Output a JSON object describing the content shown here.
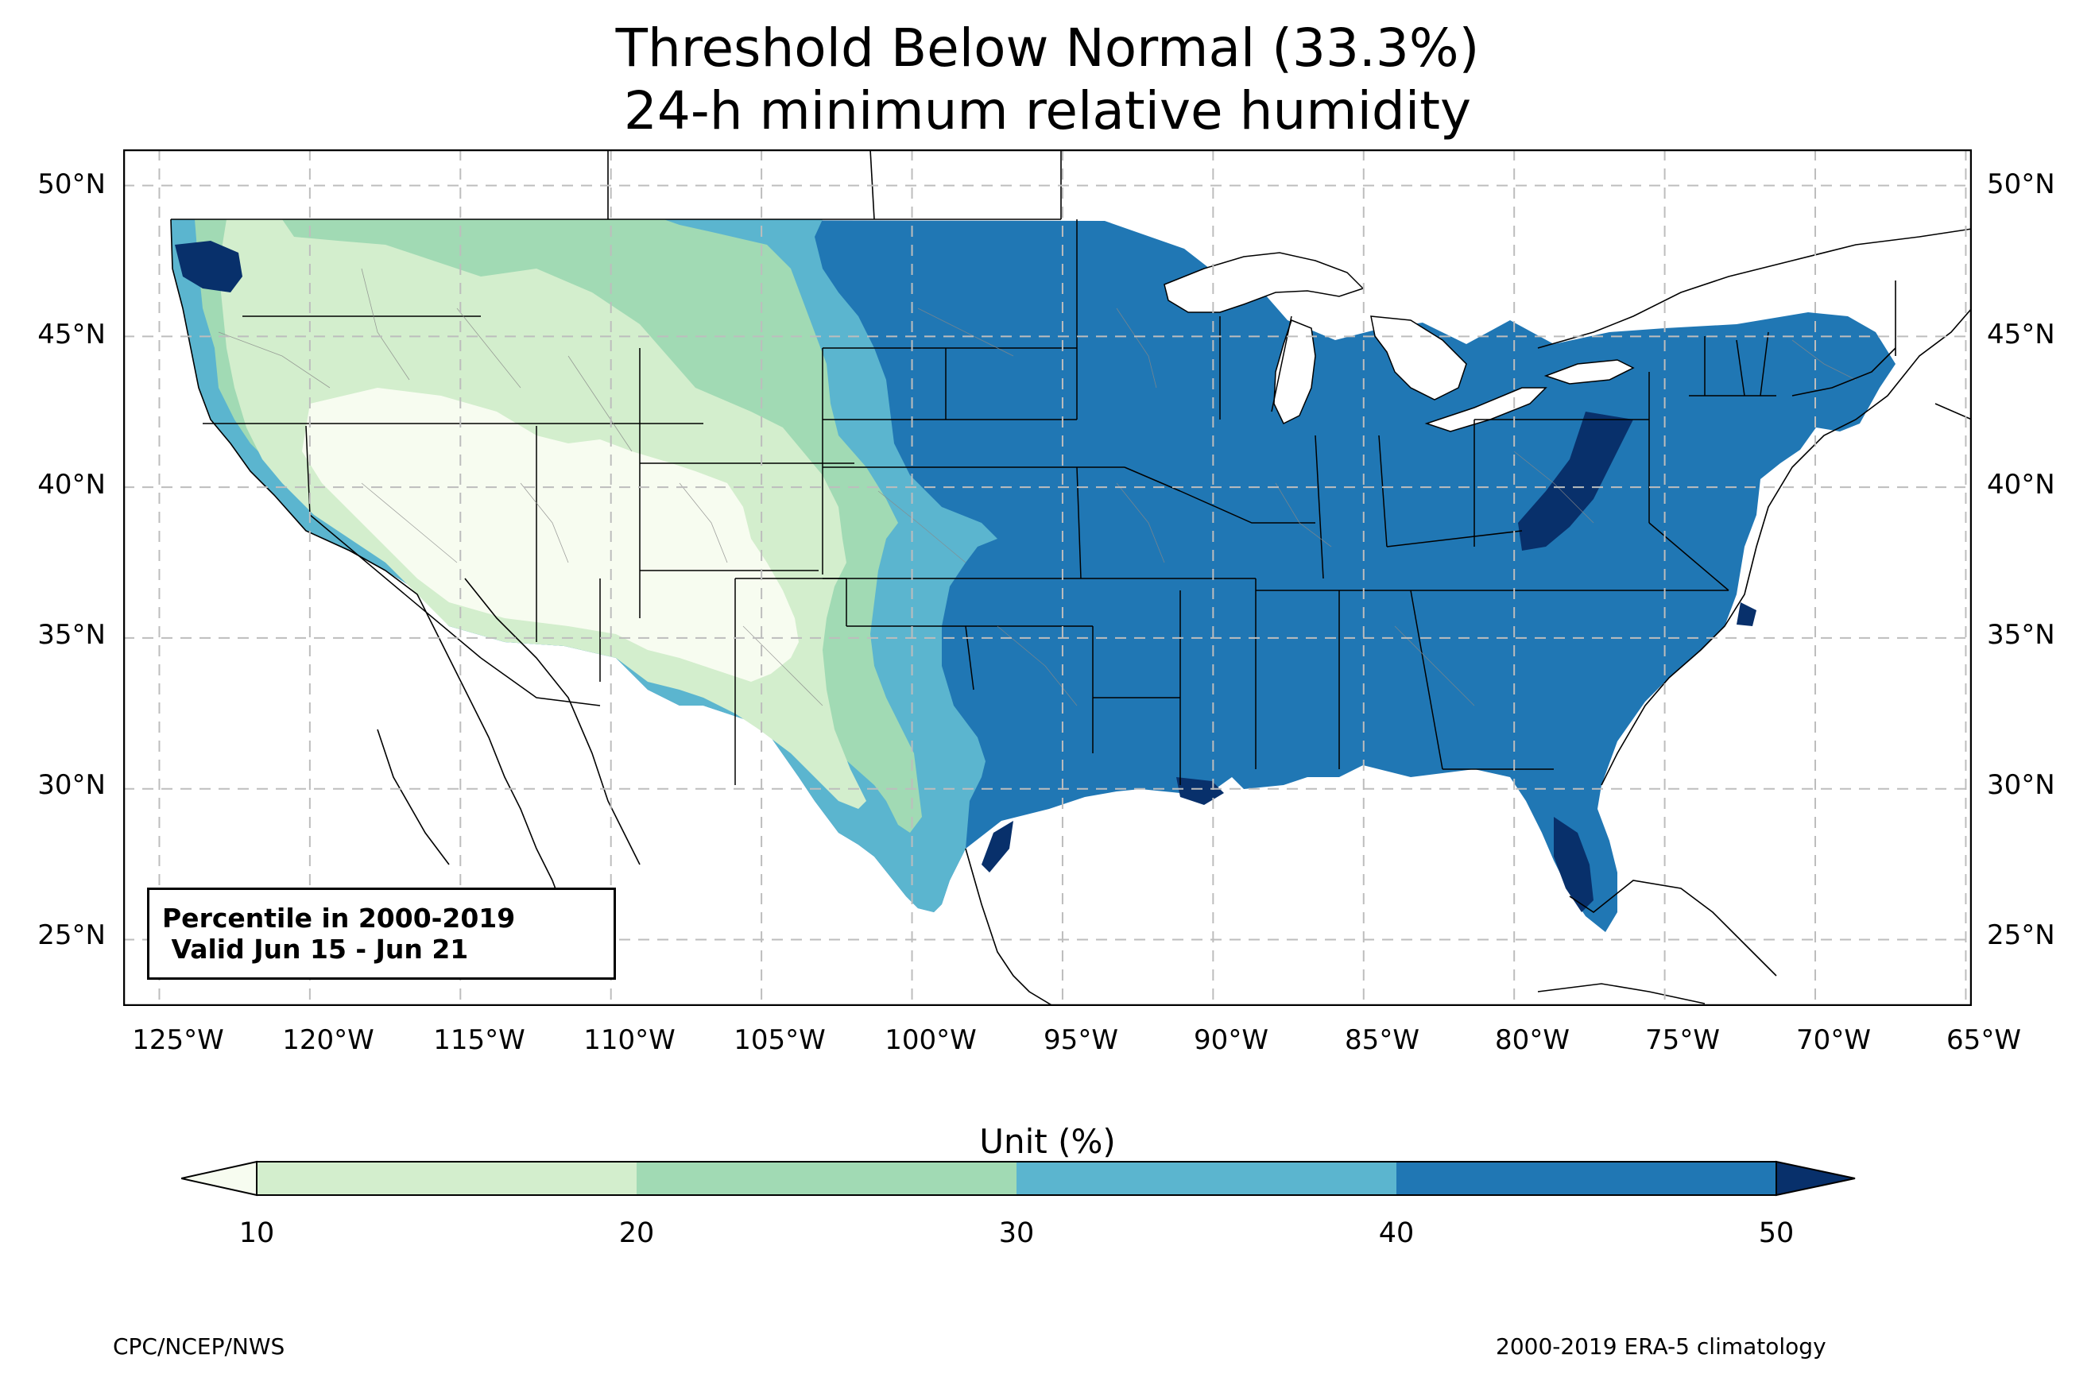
{
  "title": {
    "line1": "Threshold Below Normal (33.3%)",
    "line2": "24-h minimum relative humidity"
  },
  "axes": {
    "lat_labels": [
      "50°N",
      "45°N",
      "40°N",
      "35°N",
      "30°N",
      "25°N"
    ],
    "lon_labels": [
      "125°W",
      "120°W",
      "115°W",
      "110°W",
      "105°W",
      "100°W",
      "95°W",
      "90°W",
      "85°W",
      "80°W",
      "75°W",
      "70°W",
      "65°W"
    ],
    "lat_range": [
      22.8,
      51.2
    ],
    "lon_range": [
      -126.2,
      -64.8
    ],
    "grid": true
  },
  "infobox": {
    "line1": "Percentile in 2000-2019",
    "line2": " Valid Jun 15 - Jun 21"
  },
  "colorbar": {
    "title": "Unit (%)",
    "ticks": [
      "10",
      "20",
      "30",
      "40",
      "50"
    ],
    "levels": [
      10,
      20,
      30,
      40,
      50
    ],
    "colors": {
      "below_10": "#f7fcf0",
      "10_20": "#d3eecd",
      "20_30": "#a1dab4",
      "30_40": "#5bb5cf",
      "40_50": "#2077b4",
      "above_50": "#08306b"
    }
  },
  "footer": {
    "left": "CPC/NCEP/NWS",
    "right": "2000-2019 ERA-5 climatology"
  }
}
